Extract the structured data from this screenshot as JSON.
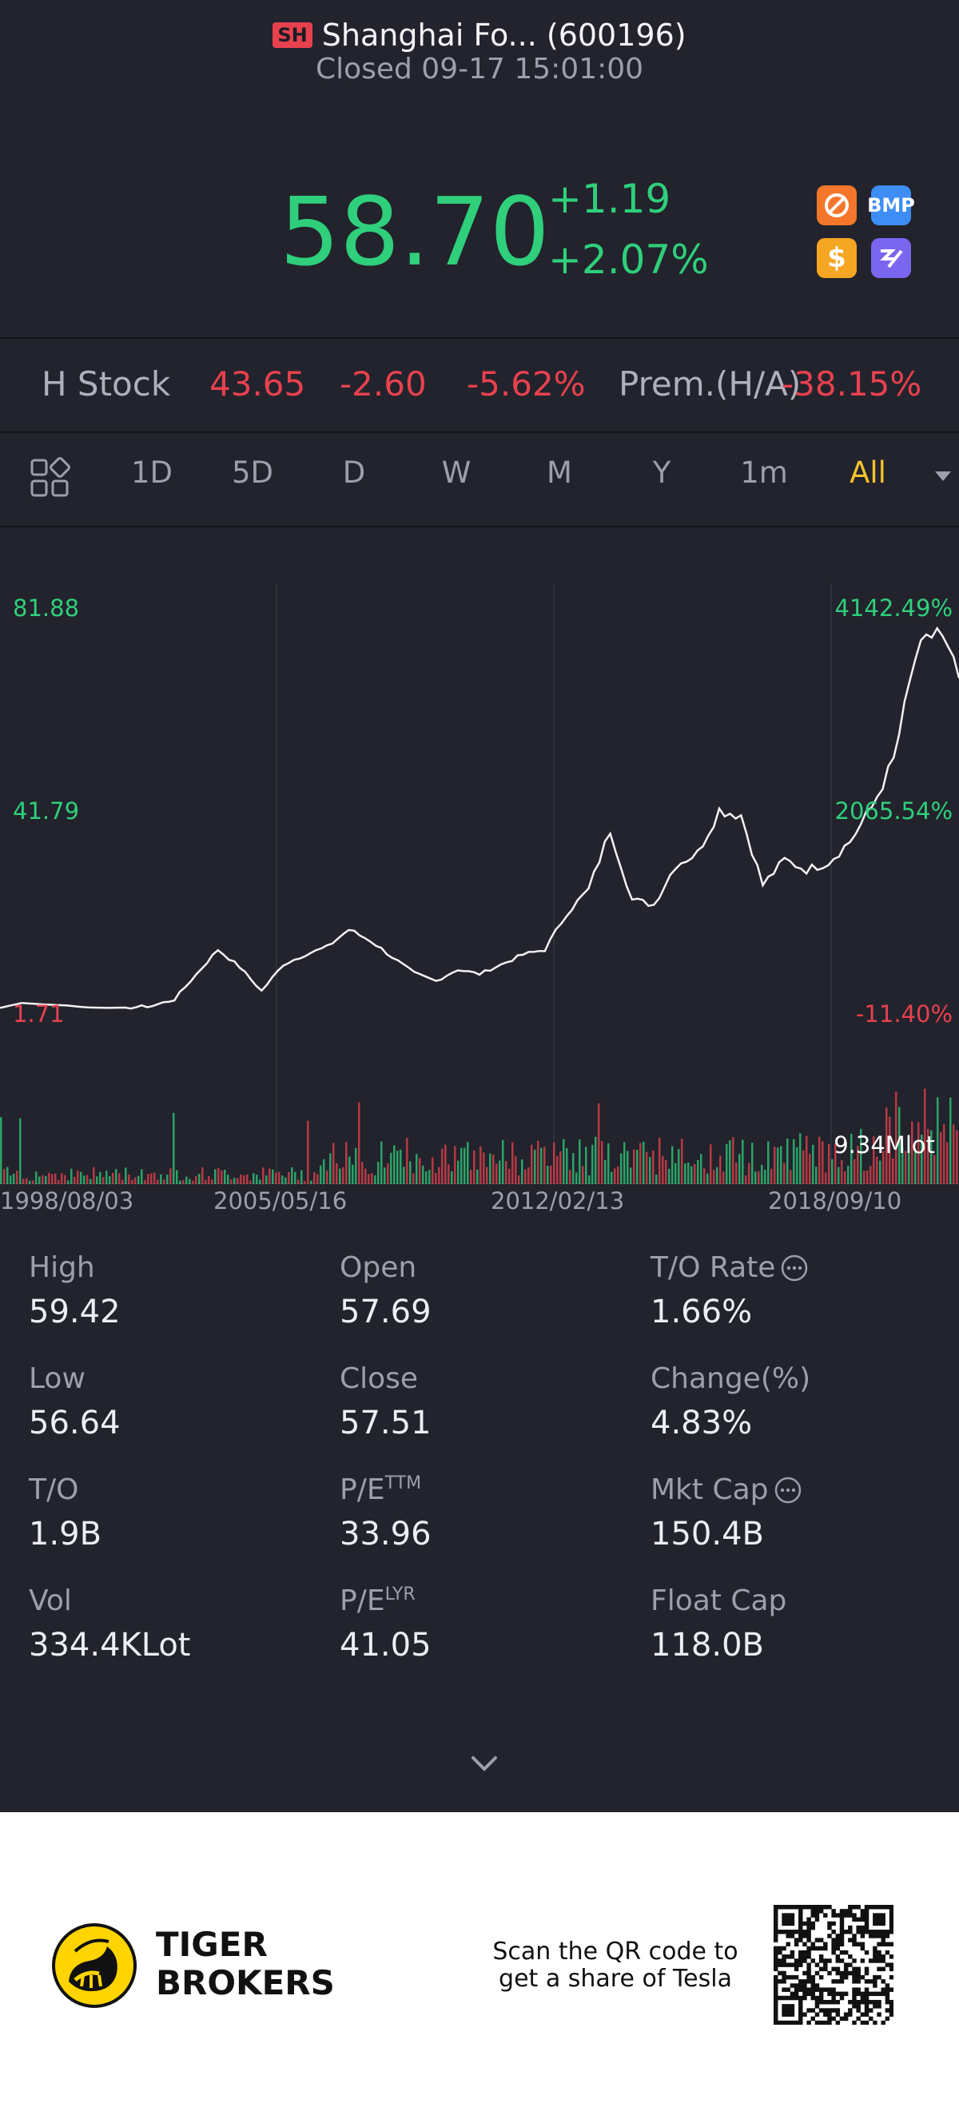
{
  "header": {
    "badge": "SH",
    "title": "Shanghai Fo... (600196)",
    "status": "Closed 09-17 15:01:00"
  },
  "quote": {
    "price": "58.70",
    "change": "+1.19",
    "change_pct": "+2.07%",
    "icons": [
      {
        "name": "no-sign-icon",
        "color": "#f4762b"
      },
      {
        "name": "bmp-icon",
        "label": "BMP",
        "color": "#3d8df5"
      },
      {
        "name": "dollar-icon",
        "label": "$",
        "color": "#f5a623"
      },
      {
        "name": "purple-app-icon",
        "color": "#7b66f0"
      }
    ]
  },
  "h_stock": {
    "label": "H Stock",
    "price": "43.65",
    "change": "-2.60",
    "change_pct": "-5.62%",
    "premium_label": "Prem.(H/A)",
    "premium_value": "-38.15%"
  },
  "tabs": [
    "1D",
    "5D",
    "D",
    "W",
    "M",
    "Y",
    "1m",
    "All"
  ],
  "active_tab": "All",
  "chart_data": {
    "type": "line",
    "y_left_labels": [
      "81.88",
      "41.79",
      "1.71"
    ],
    "y_right_labels": [
      "4142.49%",
      "2065.54%",
      "-11.40%"
    ],
    "x_labels": [
      "1998/08/03",
      "2005/05/16",
      "2012/02/13",
      "2018/09/10"
    ],
    "volume_label": "9.34Mlot",
    "ylim": [
      1.71,
      81.88
    ],
    "x": [
      "1998/08",
      "1999/06",
      "2000/06",
      "2001/06",
      "2002/06",
      "2003/06",
      "2004/06",
      "2005/05",
      "2006/06",
      "2006/12",
      "2007/06",
      "2007/10",
      "2008/06",
      "2008/12",
      "2009/06",
      "2009/12",
      "2010/06",
      "2010/12",
      "2011/06",
      "2011/12",
      "2012/02",
      "2012/06",
      "2012/12",
      "2013/06",
      "2013/12",
      "2014/06",
      "2014/12",
      "2015/06",
      "2015/09",
      "2016/06",
      "2016/12",
      "2017/06",
      "2017/12",
      "2018/06",
      "2018/09",
      "2018/12",
      "2019/06",
      "2019/12",
      "2020/03",
      "2020/06",
      "2020/09",
      "2020/12",
      "2021/03",
      "2021/06",
      "2021/09"
    ],
    "values": [
      1.8,
      2.8,
      2.5,
      2.3,
      1.9,
      1.8,
      1.9,
      2.2,
      3.5,
      8.5,
      13.5,
      10,
      5.2,
      10.5,
      12.5,
      14,
      17.5,
      15.3,
      12,
      8.8,
      7.2,
      9.5,
      8.6,
      10.5,
      12.5,
      13.5,
      20.8,
      25.5,
      37.5,
      23.5,
      22.5,
      30.5,
      32.8,
      41.5,
      40.5,
      26.5,
      31.5,
      29.5,
      31,
      35.2,
      42,
      51.5,
      72,
      78,
      68
    ]
  },
  "stats": [
    [
      {
        "label": "High",
        "value": "59.42"
      },
      {
        "label": "Open",
        "value": "57.69"
      },
      {
        "label": "T/O Rate",
        "value": "1.66%",
        "info": true
      }
    ],
    [
      {
        "label": "Low",
        "value": "56.64"
      },
      {
        "label": "Close",
        "value": "57.51"
      },
      {
        "label": "Change(%)",
        "value": "4.83%"
      }
    ],
    [
      {
        "label": "T/O",
        "value": "1.9B"
      },
      {
        "label": "P/E",
        "sup": "TTM",
        "value": "33.96"
      },
      {
        "label": "Mkt Cap",
        "value": "150.4B",
        "info": true
      }
    ],
    [
      {
        "label": "Vol",
        "value": "334.4KLot"
      },
      {
        "label": "P/E",
        "sup": "LYR",
        "value": "41.05"
      },
      {
        "label": "Float Cap",
        "value": "118.0B"
      }
    ]
  ],
  "footer": {
    "brand_line1": "TIGER",
    "brand_line2": "BROKERS",
    "promo_line1": "Scan the QR code to",
    "promo_line2": "get a share of Tesla"
  }
}
